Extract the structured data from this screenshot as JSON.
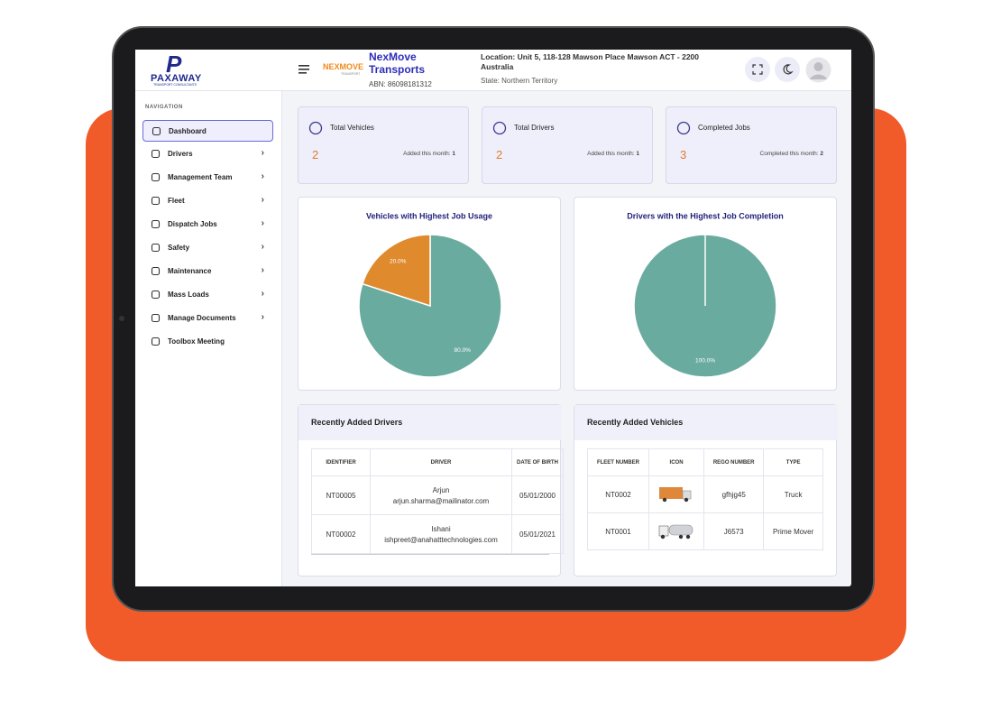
{
  "brand": {
    "name": "PAXAWAY",
    "tagline": "TRANSPORT CONSULTANTS"
  },
  "company": {
    "logo": "NEXMOVE",
    "logo_sub": "TRANSPORT",
    "name": "NexMove Transports",
    "abn": "ABN: 86098181312",
    "location": "Location: Unit 5, 118-128 Mawson Place Mawson ACT - 2200 Australia",
    "state": "State: Northern Territory"
  },
  "navigation": {
    "heading": "NAVIGATION",
    "items": [
      {
        "label": "Dashboard",
        "active": true,
        "submenu": false
      },
      {
        "label": "Drivers",
        "active": false,
        "submenu": true
      },
      {
        "label": "Management Team",
        "active": false,
        "submenu": true
      },
      {
        "label": "Fleet",
        "active": false,
        "submenu": true
      },
      {
        "label": "Dispatch Jobs",
        "active": false,
        "submenu": true
      },
      {
        "label": "Safety",
        "active": false,
        "submenu": true
      },
      {
        "label": "Maintenance",
        "active": false,
        "submenu": true
      },
      {
        "label": "Mass Loads",
        "active": false,
        "submenu": true
      },
      {
        "label": "Manage Documents",
        "active": false,
        "submenu": true
      },
      {
        "label": "Toolbox Meeting",
        "active": false,
        "submenu": false
      }
    ]
  },
  "stats": [
    {
      "label": "Total Vehicles",
      "value": 2,
      "note": "Added this month:",
      "note_value": 1
    },
    {
      "label": "Total Drivers",
      "value": 2,
      "note": "Added this month:",
      "note_value": 1
    },
    {
      "label": "Completed Jobs",
      "value": 3,
      "note": "Completed this month:",
      "note_value": 2
    }
  ],
  "chart_data": [
    {
      "type": "pie",
      "title": "Vehicles with Highest Job Usage",
      "values": [
        80,
        20
      ],
      "value_labels": [
        "80.0%",
        "20.0%"
      ],
      "colors": [
        "#6aaba0",
        "#e08a2e"
      ]
    },
    {
      "type": "pie",
      "title": "Drivers with the Highest Job Completion",
      "values": [
        100
      ],
      "value_labels": [
        "100.0%"
      ],
      "colors": [
        "#6aaba0"
      ]
    }
  ],
  "drivers_table": {
    "title": "Recently Added Drivers",
    "headers": [
      "IDENTIFIER",
      "DRIVER",
      "DATE OF BIRTH"
    ],
    "rows": [
      {
        "identifier": "NT00005",
        "name": "Arjun",
        "email": "arjun.sharma@mailinator.com",
        "dob": "05/01/2000"
      },
      {
        "identifier": "NT00002",
        "name": "Ishani",
        "email": "ishpreet@anahatttechnologies.com",
        "dob": "05/01/2021"
      }
    ]
  },
  "vehicles_table": {
    "title": "Recently Added Vehicles",
    "headers": [
      "FLEET NUMBER",
      "ICON",
      "REGO NUMBER",
      "TYPE"
    ],
    "rows": [
      {
        "fleet": "NT0002",
        "rego": "gfhjg45",
        "type": "Truck"
      },
      {
        "fleet": "NT0001",
        "rego": "J6573",
        "type": "Prime Mover"
      }
    ]
  }
}
